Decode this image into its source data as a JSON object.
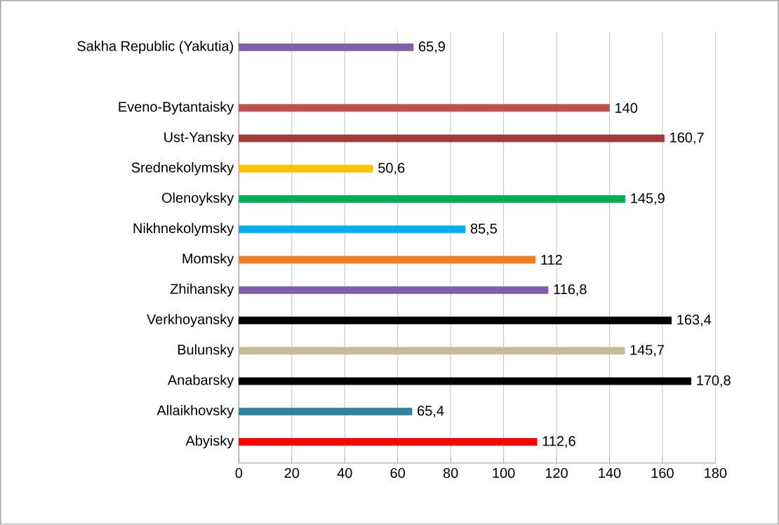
{
  "chart_data": {
    "type": "bar",
    "orientation": "horizontal",
    "categories": [
      "Sakha Republic (Yakutia)",
      null,
      "Eveno-Bytantaisky",
      "Ust-Yansky",
      "Srednekolymsky",
      "Olenoyksky",
      "Nikhnekolymsky",
      "Momsky",
      "Zhihansky",
      "Verkhoyansky",
      "Bulunsky",
      "Anabarsky",
      "Allaikhovsky",
      "Abyisky"
    ],
    "values": [
      65.9,
      null,
      140,
      160.7,
      50.6,
      145.9,
      85.5,
      112,
      116.8,
      163.4,
      145.7,
      170.8,
      65.4,
      112.6
    ],
    "value_labels": [
      "65,9",
      null,
      "140",
      "160,7",
      "50,6",
      "145,9",
      "85,5",
      "112",
      "116,8",
      "163,4",
      "145,7",
      "170,8",
      "65,4",
      "112,6"
    ],
    "colors": [
      "#7f5fa8",
      "#c0504d",
      "#c0504d",
      "#a33c38",
      "#ffc000",
      "#00b050",
      "#00b0f0",
      "#f47b20",
      "#7f5fa8",
      "#000000",
      "#c4bd97",
      "#000000",
      "#31849b",
      "#ff0000"
    ],
    "xlim": [
      0,
      180
    ],
    "xticks": [
      0,
      20,
      40,
      60,
      80,
      100,
      120,
      140,
      160,
      180
    ],
    "grid": "x"
  }
}
